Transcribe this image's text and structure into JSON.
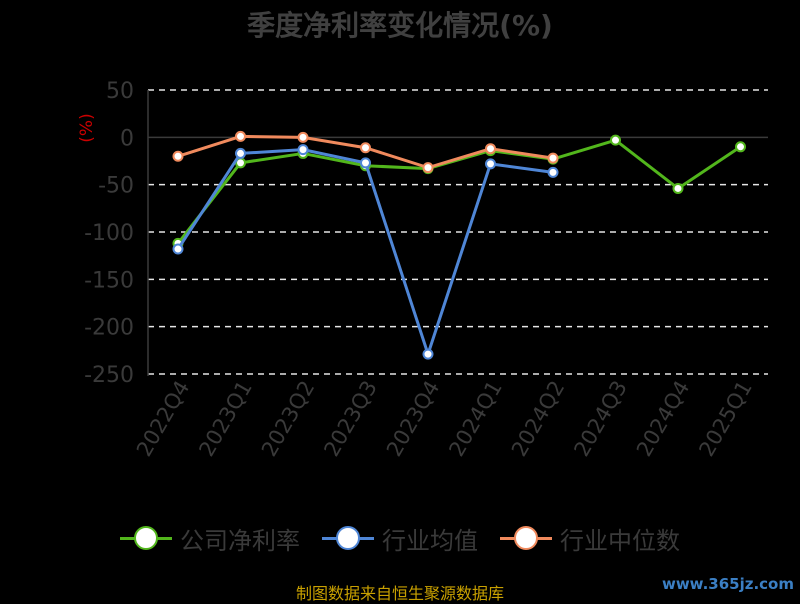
{
  "chart_data": {
    "type": "line",
    "title": "季度净利率变化情况(%)",
    "ylabel": "(%)",
    "xlabel": "",
    "ylim": [
      -250,
      50
    ],
    "yticks": [
      50,
      0,
      -50,
      -100,
      -150,
      -200,
      -250
    ],
    "categories": [
      "2022Q4",
      "2023Q1",
      "2023Q2",
      "2023Q3",
      "2023Q4",
      "2024Q1",
      "2024Q2",
      "2024Q3",
      "2024Q4",
      "2025Q1"
    ],
    "grid": true,
    "legend_position": "bottom",
    "series": [
      {
        "name": "公司净利率",
        "color": "#52b61c",
        "values": [
          -112,
          -27,
          -17,
          -30,
          -33,
          -14,
          -23,
          -3,
          -54,
          -10
        ]
      },
      {
        "name": "行业均值",
        "color": "#4f86d6",
        "values": [
          -118,
          -17,
          -13,
          -27,
          -229,
          -28,
          -37,
          null,
          null,
          null
        ]
      },
      {
        "name": "行业中位数",
        "color": "#f08a5d",
        "values": [
          -20,
          1,
          0,
          -11,
          -32,
          -12,
          -22,
          null,
          null,
          null
        ]
      }
    ]
  },
  "footer": {
    "source": "制图数据来自恒生聚源数据库",
    "watermark": "www.365jz.com"
  }
}
